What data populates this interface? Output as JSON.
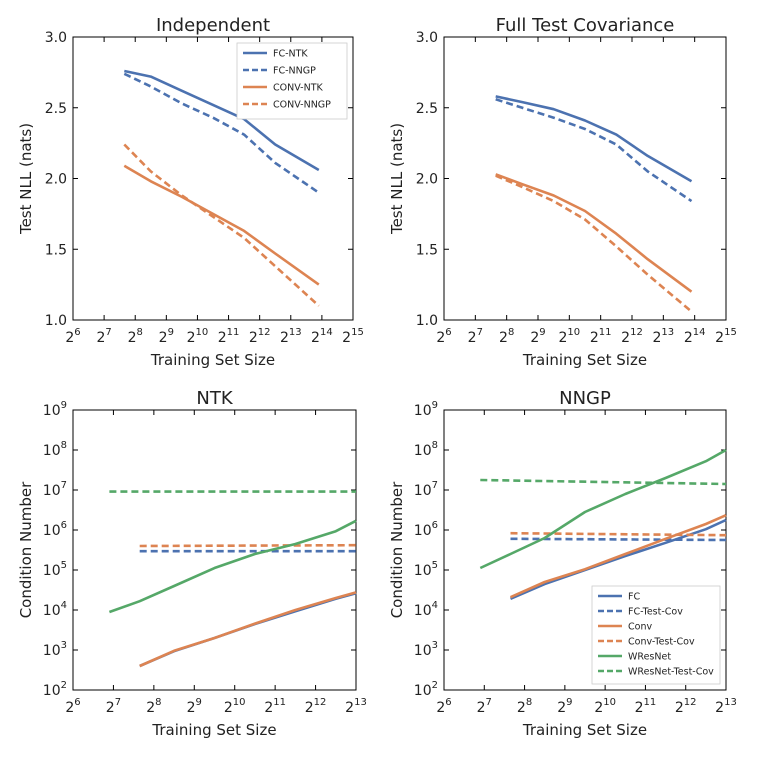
{
  "chart_data": [
    {
      "id": "p1",
      "type": "line",
      "title": "Independent",
      "xlabel": "Training Set Size",
      "ylabel": "Test NLL (nats)",
      "xscale": "log2",
      "xlim_exp": [
        6,
        15
      ],
      "xticks_exp": [
        6,
        7,
        8,
        9,
        10,
        11,
        12,
        13,
        14,
        15
      ],
      "yscale": "linear",
      "ylim": [
        1.0,
        3.0
      ],
      "yticks": [
        "1.0",
        "1.5",
        "2.0",
        "2.5",
        "3.0"
      ],
      "legend": "top-right",
      "series": [
        {
          "name": "FC-NTK",
          "color": "#4c72b0",
          "dashed": false,
          "x_exp": [
            7.65,
            8.5,
            9.5,
            10.5,
            11.5,
            12.5,
            13.9
          ],
          "values": [
            2.76,
            2.72,
            2.62,
            2.52,
            2.42,
            2.24,
            2.06
          ]
        },
        {
          "name": "FC-NNGP",
          "color": "#4c72b0",
          "dashed": true,
          "x_exp": [
            7.65,
            8.5,
            9.5,
            10.5,
            11.5,
            12.5,
            13.9
          ],
          "values": [
            2.74,
            2.65,
            2.53,
            2.43,
            2.31,
            2.11,
            1.9
          ]
        },
        {
          "name": "CONV-NTK",
          "color": "#dd8452",
          "dashed": false,
          "x_exp": [
            7.65,
            8.5,
            9.5,
            10.5,
            11.5,
            12.5,
            13.9
          ],
          "values": [
            2.09,
            1.98,
            1.87,
            1.75,
            1.63,
            1.47,
            1.25
          ]
        },
        {
          "name": "CONV-NNGP",
          "color": "#dd8452",
          "dashed": true,
          "x_exp": [
            7.65,
            8.5,
            9.5,
            10.5,
            11.5,
            12.5,
            13.9
          ],
          "values": [
            2.24,
            2.05,
            1.88,
            1.73,
            1.58,
            1.38,
            1.1
          ]
        }
      ]
    },
    {
      "id": "p2",
      "type": "line",
      "title": "Full Test Covariance",
      "xlabel": "Training Set Size",
      "ylabel": "Test NLL (nats)",
      "xscale": "log2",
      "xlim_exp": [
        6,
        15
      ],
      "xticks_exp": [
        6,
        7,
        8,
        9,
        10,
        11,
        12,
        13,
        14,
        15
      ],
      "yscale": "linear",
      "ylim": [
        1.0,
        3.0
      ],
      "yticks": [
        "1.0",
        "1.5",
        "2.0",
        "2.5",
        "3.0"
      ],
      "legend": "",
      "series": [
        {
          "name": "FC-NTK",
          "color": "#4c72b0",
          "dashed": false,
          "x_exp": [
            7.65,
            8.5,
            9.5,
            10.5,
            11.5,
            12.5,
            13.9
          ],
          "values": [
            2.58,
            2.54,
            2.49,
            2.41,
            2.31,
            2.16,
            1.98
          ]
        },
        {
          "name": "FC-NNGP",
          "color": "#4c72b0",
          "dashed": true,
          "x_exp": [
            7.65,
            8.5,
            9.5,
            10.5,
            11.5,
            12.5,
            13.9
          ],
          "values": [
            2.56,
            2.5,
            2.43,
            2.35,
            2.24,
            2.05,
            1.84
          ]
        },
        {
          "name": "CONV-NTK",
          "color": "#dd8452",
          "dashed": false,
          "x_exp": [
            7.65,
            8.5,
            9.5,
            10.5,
            11.5,
            12.5,
            13.9
          ],
          "values": [
            2.03,
            1.96,
            1.88,
            1.77,
            1.61,
            1.43,
            1.2
          ]
        },
        {
          "name": "CONV-NNGP",
          "color": "#dd8452",
          "dashed": true,
          "x_exp": [
            7.65,
            8.5,
            9.5,
            10.5,
            11.5,
            12.5,
            13.9
          ],
          "values": [
            2.02,
            1.94,
            1.84,
            1.71,
            1.52,
            1.32,
            1.06
          ]
        }
      ]
    },
    {
      "id": "p3",
      "type": "line",
      "title": "NTK",
      "xlabel": "Training Set Size",
      "ylabel": "Condition Number",
      "xscale": "log2",
      "xlim_exp": [
        6,
        13
      ],
      "xticks_exp": [
        6,
        7,
        8,
        9,
        10,
        11,
        12,
        13
      ],
      "yscale": "log10",
      "ylim_exp": [
        2,
        9
      ],
      "yticks_exp": [
        2,
        3,
        4,
        5,
        6,
        7,
        8,
        9
      ],
      "legend": "",
      "series": [
        {
          "name": "FC",
          "color": "#4c72b0",
          "dashed": false,
          "x_exp": [
            7.65,
            8.5,
            9.5,
            10.5,
            11.5,
            12.5,
            13.0
          ],
          "log_values": [
            2.6,
            2.97,
            3.3,
            3.65,
            3.97,
            4.28,
            4.42
          ]
        },
        {
          "name": "FC-Test-Cov",
          "color": "#4c72b0",
          "dashed": true,
          "x_exp": [
            7.65,
            13.0
          ],
          "log_values": [
            5.47,
            5.47
          ]
        },
        {
          "name": "Conv",
          "color": "#dd8452",
          "dashed": false,
          "x_exp": [
            7.65,
            8.5,
            9.5,
            10.5,
            11.5,
            12.5,
            13.0
          ],
          "log_values": [
            2.6,
            2.98,
            3.3,
            3.66,
            4.0,
            4.3,
            4.44
          ]
        },
        {
          "name": "Conv-Test-Cov",
          "color": "#dd8452",
          "dashed": true,
          "x_exp": [
            7.65,
            13.0
          ],
          "log_values": [
            5.6,
            5.62
          ]
        },
        {
          "name": "WResNet",
          "color": "#55a868",
          "dashed": false,
          "x_exp": [
            6.9,
            7.65,
            8.5,
            9.5,
            10.5,
            11.5,
            12.5,
            13.0
          ],
          "log_values": [
            3.95,
            4.22,
            4.6,
            5.05,
            5.4,
            5.65,
            5.97,
            6.23
          ]
        },
        {
          "name": "WResNet-Test-Cov",
          "color": "#55a868",
          "dashed": true,
          "x_exp": [
            6.9,
            13.0
          ],
          "log_values": [
            6.96,
            6.96
          ]
        }
      ]
    },
    {
      "id": "p4",
      "type": "line",
      "title": "NNGP",
      "xlabel": "Training Set Size",
      "ylabel": "Condition Number",
      "xscale": "log2",
      "xlim_exp": [
        6,
        13
      ],
      "xticks_exp": [
        6,
        7,
        8,
        9,
        10,
        11,
        12,
        13
      ],
      "yscale": "log10",
      "ylim_exp": [
        2,
        9
      ],
      "yticks_exp": [
        2,
        3,
        4,
        5,
        6,
        7,
        8,
        9
      ],
      "legend": "bottom-right",
      "series": [
        {
          "name": "FC",
          "color": "#4c72b0",
          "dashed": false,
          "x_exp": [
            7.65,
            8.5,
            9.5,
            10.5,
            11.5,
            12.5,
            13.0
          ],
          "log_values": [
            4.28,
            4.65,
            5.0,
            5.35,
            5.68,
            6.02,
            6.25
          ]
        },
        {
          "name": "FC-Test-Cov",
          "color": "#4c72b0",
          "dashed": true,
          "x_exp": [
            7.65,
            13.0
          ],
          "log_values": [
            5.78,
            5.75
          ]
        },
        {
          "name": "Conv",
          "color": "#dd8452",
          "dashed": false,
          "x_exp": [
            7.65,
            8.5,
            9.5,
            10.5,
            11.5,
            12.5,
            13.0
          ],
          "log_values": [
            4.32,
            4.7,
            5.02,
            5.4,
            5.78,
            6.15,
            6.37
          ]
        },
        {
          "name": "Conv-Test-Cov",
          "color": "#dd8452",
          "dashed": true,
          "x_exp": [
            7.65,
            13.0
          ],
          "log_values": [
            5.92,
            5.87
          ]
        },
        {
          "name": "WResNet",
          "color": "#55a868",
          "dashed": false,
          "x_exp": [
            6.9,
            7.65,
            8.5,
            9.5,
            10.5,
            11.5,
            12.5,
            13.0
          ],
          "log_values": [
            5.05,
            5.4,
            5.8,
            6.45,
            6.9,
            7.3,
            7.72,
            8.0
          ]
        },
        {
          "name": "WResNet-Test-Cov",
          "color": "#55a868",
          "dashed": true,
          "x_exp": [
            6.9,
            13.0
          ],
          "log_values": [
            7.25,
            7.15
          ]
        }
      ]
    }
  ]
}
